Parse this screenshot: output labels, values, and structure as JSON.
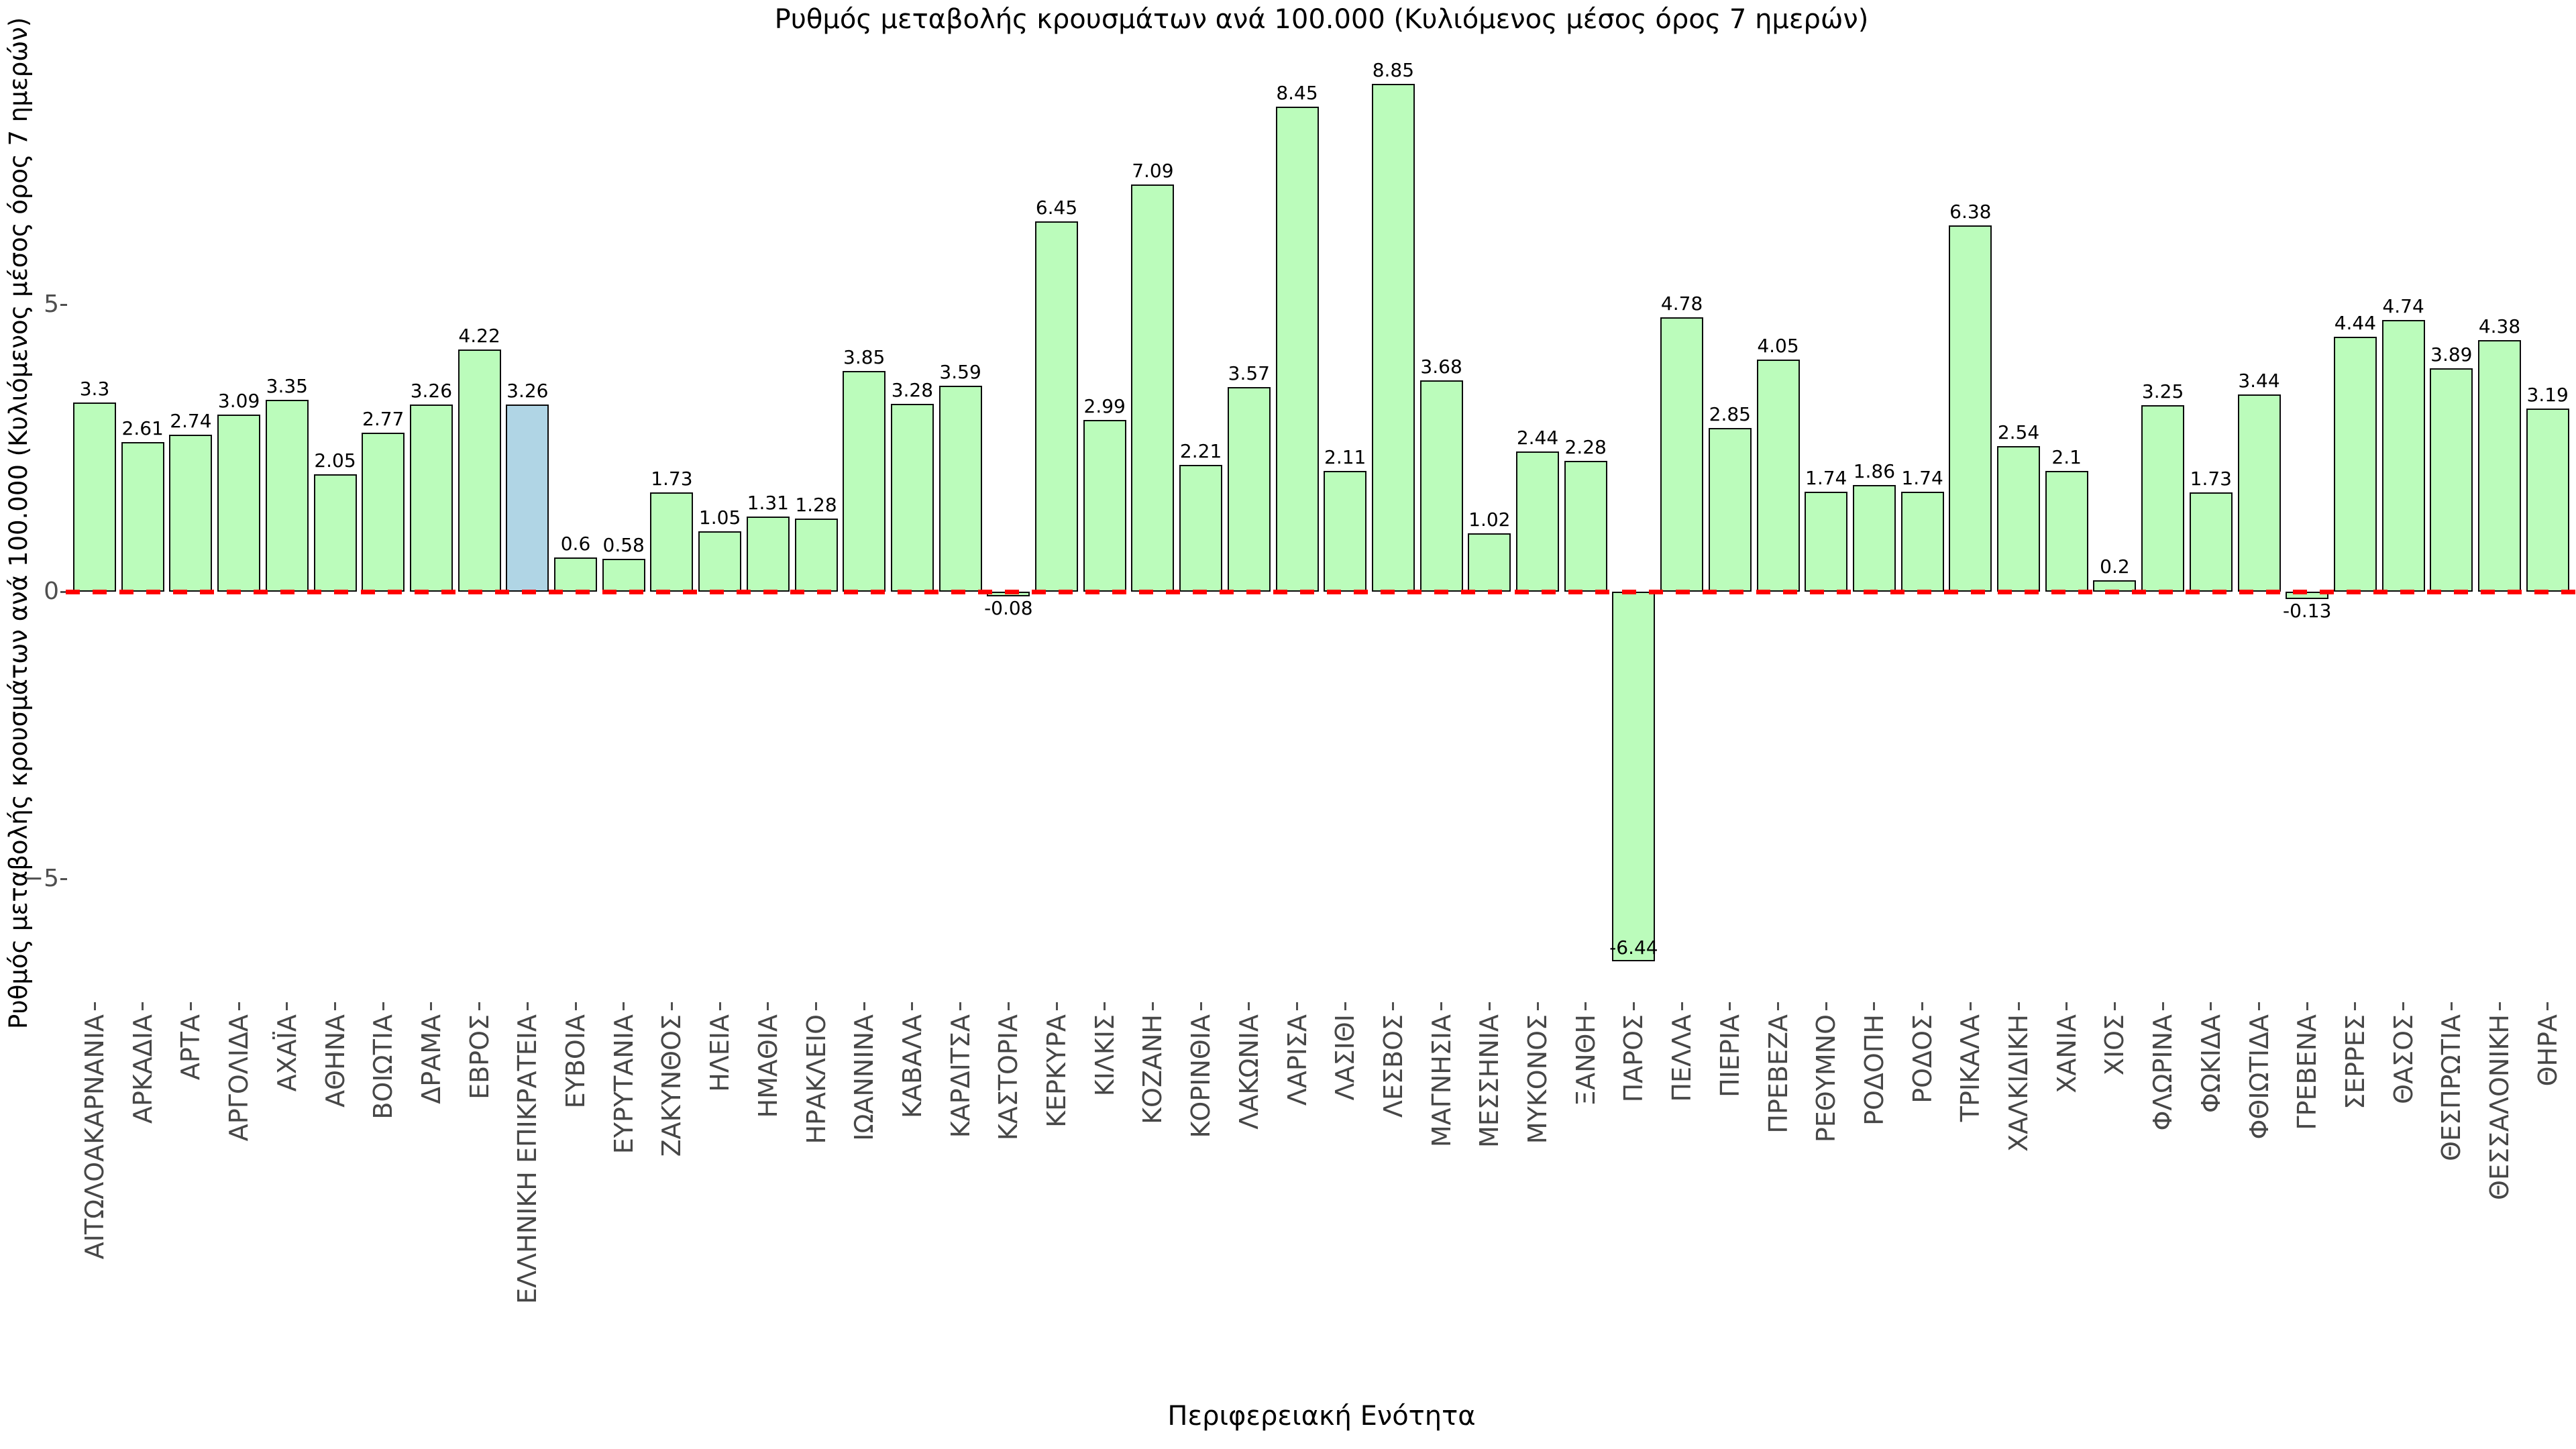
{
  "title": "Ρυθμός μεταβολής κρουσμάτων ανά 100.000 (Κυλιόμενος μέσος όρος 7 ημερών)",
  "x_axis_label": "Περιφερειακή Ενότητα",
  "y_axis_label": "Ρυθμός μεταβολής κρουσμάτων ανά 100.000 (Κυλιόμενος μέσος όρος 7 ημερών)",
  "colors": {
    "bar_fill": "#bbfcbb",
    "bar_highlight_fill": "#b0d5e5",
    "bar_edge": "#0a0a0a",
    "zero_line": "#ff0000",
    "tick_label": "#4f4f4f",
    "text": "#000000",
    "background": "#ffffff"
  },
  "chart_data": {
    "type": "bar",
    "title": "Ρυθμός μεταβολής κρουσμάτων ανά 100.000 (Κυλιόμενος μέσος όρος 7 ημερών)",
    "xlabel": "Περιφερειακή Ενότητα",
    "ylabel": "Ρυθμός μεταβολής κρουσμάτων ανά 100.000 (Κυλιόμενος μέσος όρος 7 ημερών)",
    "ylim": [
      -7.15,
      9.55
    ],
    "grid": false,
    "legend": null,
    "zero_line": {
      "style": "dashed",
      "color": "#ff0000",
      "y": 0
    },
    "y_ticks": [
      {
        "value": 5,
        "label": "5"
      },
      {
        "value": 0,
        "label": "0"
      },
      {
        "value": -5,
        "label": "−5"
      }
    ],
    "highlight_category": "ΕΛΛΗΝΙΚΗ ΕΠΙΚΡΑΤΕΙΑ",
    "categories": [
      "ΑΙΤΩΛΟΑΚΑΡΝΑΝΙΑ",
      "ΑΡΚΑΔΙΑ",
      "ΑΡΤΑ",
      "ΑΡΓΟΛΙΔΑ",
      "ΑΧΑΪΑ",
      "ΑΘΗΝΑ",
      "ΒΟΙΩΤΙΑ",
      "ΔΡΑΜΑ",
      "ΕΒΡΟΣ",
      "ΕΛΛΗΝΙΚΗ ΕΠΙΚΡΑΤΕΙΑ",
      "ΕΥΒΟΙΑ",
      "ΕΥΡΥΤΑΝΙΑ",
      "ΖΑΚΥΝΘΟΣ",
      "ΗΛΕΙΑ",
      "ΗΜΑΘΙΑ",
      "ΗΡΑΚΛΕΙΟ",
      "ΙΩΑΝΝΙΝΑ",
      "ΚΑΒΑΛΑ",
      "ΚΑΡΔΙΤΣΑ",
      "ΚΑΣΤΟΡΙΑ",
      "ΚΕΡΚΥΡΑ",
      "ΚΙΛΚΙΣ",
      "ΚΟΖΑΝΗ",
      "ΚΟΡΙΝΘΙΑ",
      "ΛΑΚΩΝΙΑ",
      "ΛΑΡΙΣΑ",
      "ΛΑΣΙΘΙ",
      "ΛΕΣΒΟΣ",
      "ΜΑΓΝΗΣΙΑ",
      "ΜΕΣΣΗΝΙΑ",
      "ΜΥΚΟΝΟΣ",
      "ΞΑΝΘΗ",
      "ΠΑΡΟΣ",
      "ΠΕΛΛΑ",
      "ΠΙΕΡΙΑ",
      "ΠΡΕΒΕΖΑ",
      "ΡΕΘΥΜΝΟ",
      "ΡΟΔΟΠΗ",
      "ΡΟΔΟΣ",
      "ΤΡΙΚΑΛΑ",
      "ΧΑΛΚΙΔΙΚΗ",
      "ΧΑΝΙΑ",
      "ΧΙΟΣ",
      "ΦΛΩΡΙΝΑ",
      "ΦΩΚΙΔΑ",
      "ΦΘΙΩΤΙΔΑ",
      "ΓΡΕΒΕΝΑ",
      "ΣΕΡΡΕΣ",
      "ΘΑΣΟΣ",
      "ΘΕΣΠΡΩΤΙΑ",
      "ΘΕΣΣΑΛΟΝΙΚΗ",
      "ΘΗΡΑ"
    ],
    "values": [
      3.3,
      2.61,
      2.74,
      3.09,
      3.35,
      2.05,
      2.77,
      3.26,
      4.22,
      3.26,
      0.6,
      0.58,
      1.73,
      1.05,
      1.31,
      1.28,
      3.85,
      3.28,
      3.59,
      -0.08,
      6.45,
      2.99,
      7.09,
      2.21,
      3.57,
      8.45,
      2.11,
      8.85,
      3.68,
      1.02,
      2.44,
      2.28,
      -6.44,
      4.78,
      2.85,
      4.05,
      1.74,
      1.86,
      1.74,
      6.38,
      2.54,
      2.1,
      0.2,
      3.25,
      1.73,
      3.44,
      -0.13,
      4.44,
      4.74,
      3.89,
      4.38,
      3.19
    ]
  }
}
